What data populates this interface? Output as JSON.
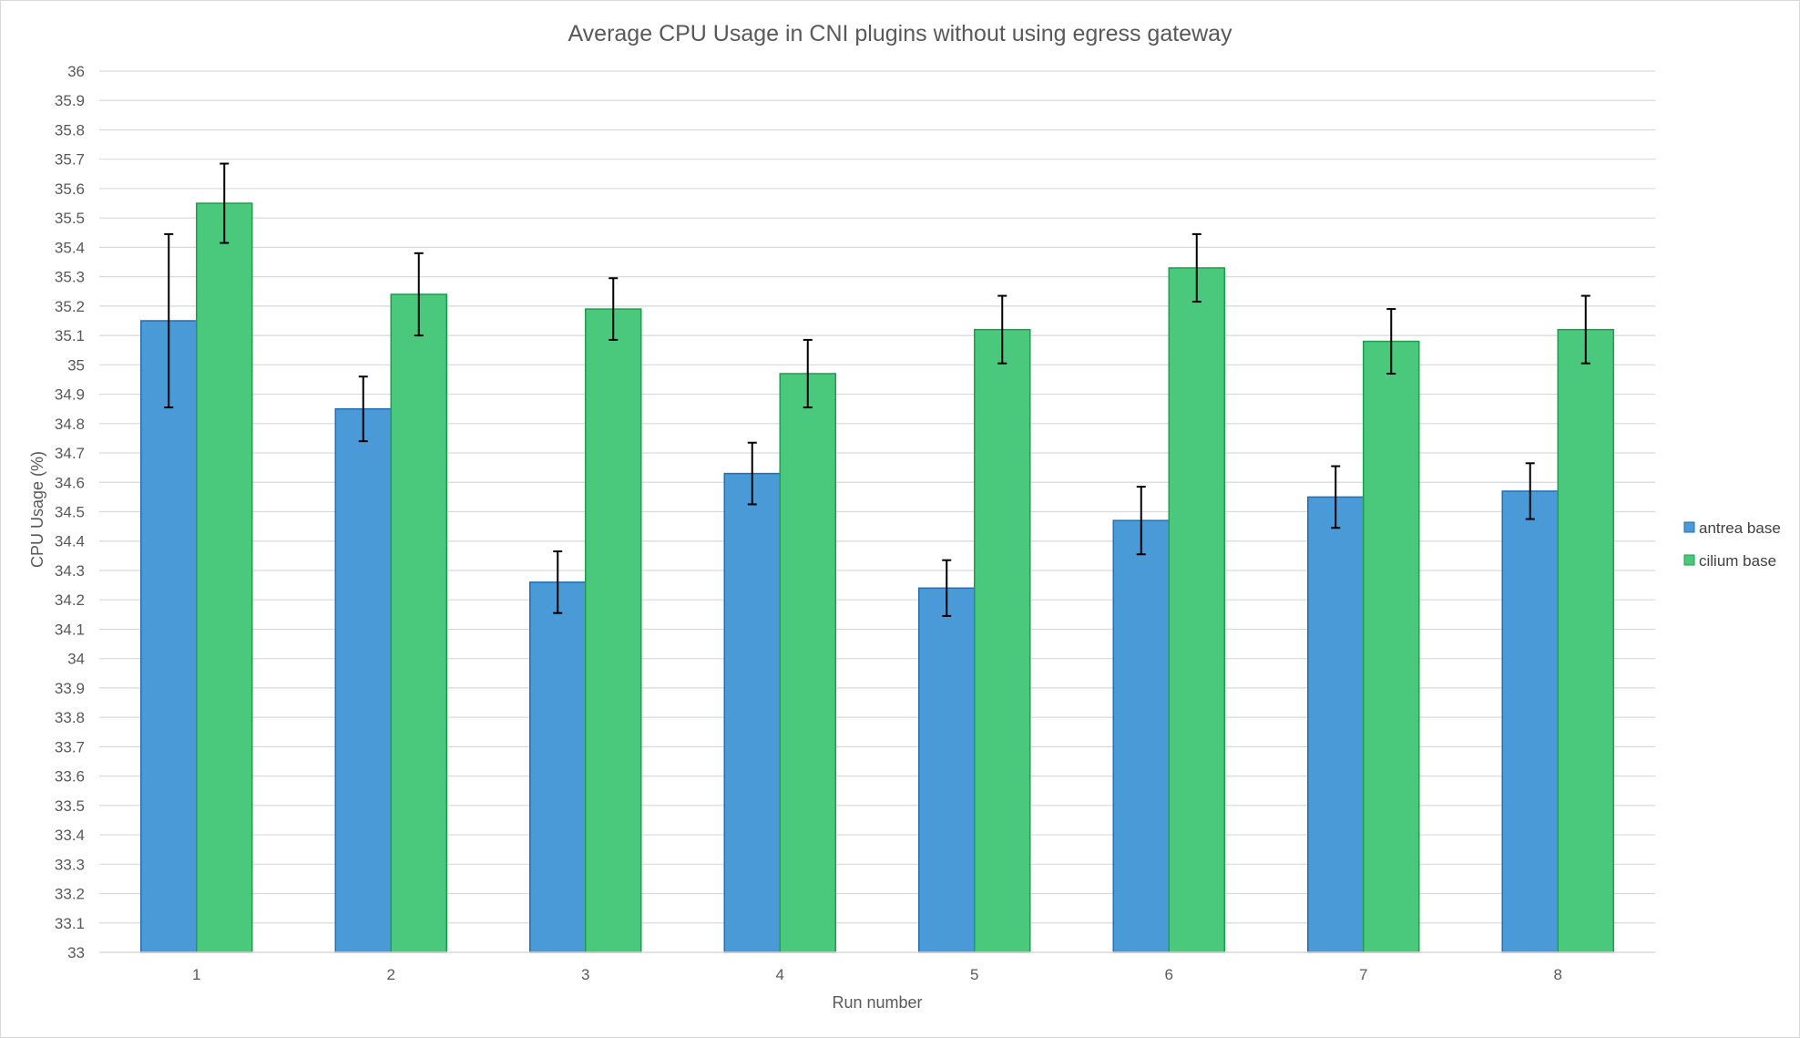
{
  "chart_data": {
    "type": "bar",
    "title": "Average CPU Usage in CNI plugins without using egress gateway",
    "xlabel": "Run number",
    "ylabel": "CPU Usage (%)",
    "ylim": [
      33,
      36
    ],
    "y_tick_step": 0.1,
    "y_tick_labels": [
      "33",
      "33.1",
      "33.2",
      "33.3",
      "33.4",
      "33.5",
      "33.6",
      "33.7",
      "33.8",
      "33.9",
      "34",
      "34.1",
      "34.2",
      "34.3",
      "34.4",
      "34.5",
      "34.6",
      "34.7",
      "34.8",
      "34.9",
      "35",
      "35.1",
      "35.2",
      "35.3",
      "35.4",
      "35.5",
      "35.6",
      "35.7",
      "35.8",
      "35.9",
      "36"
    ],
    "categories": [
      "1",
      "2",
      "3",
      "4",
      "5",
      "6",
      "7",
      "8"
    ],
    "grid": true,
    "legend_position": "right",
    "series": [
      {
        "name": "antrea base",
        "color": "#5b9bd5",
        "fill": "#4a9ad8",
        "stroke": "#1f6fb8",
        "values": [
          35.15,
          34.85,
          34.26,
          34.63,
          34.24,
          34.47,
          34.55,
          34.57
        ],
        "error": [
          0.295,
          0.11,
          0.105,
          0.105,
          0.095,
          0.115,
          0.105,
          0.095
        ]
      },
      {
        "name": "cilium base",
        "color": "#4ec87e",
        "fill": "#4ac97d",
        "stroke": "#1f9d4e",
        "values": [
          35.55,
          35.24,
          35.19,
          34.97,
          35.12,
          35.33,
          35.08,
          35.12
        ],
        "error": [
          0.135,
          0.14,
          0.105,
          0.115,
          0.115,
          0.115,
          0.11,
          0.115
        ]
      }
    ]
  }
}
